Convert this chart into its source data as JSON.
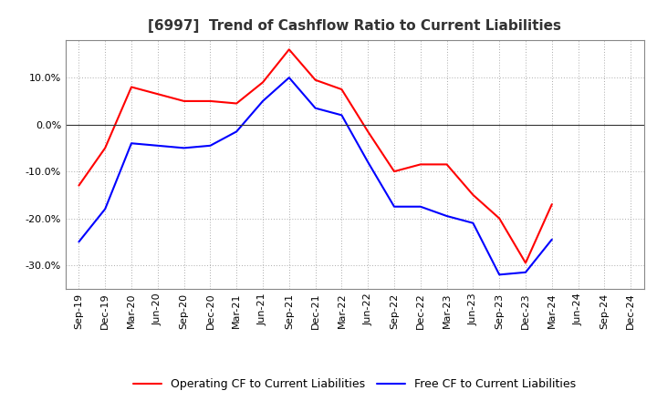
{
  "title": "[6997]  Trend of Cashflow Ratio to Current Liabilities",
  "x_labels": [
    "Sep-19",
    "Dec-19",
    "Mar-20",
    "Jun-20",
    "Sep-20",
    "Dec-20",
    "Mar-21",
    "Jun-21",
    "Sep-21",
    "Dec-21",
    "Mar-22",
    "Jun-22",
    "Sep-22",
    "Dec-22",
    "Mar-23",
    "Jun-23",
    "Sep-23",
    "Dec-23",
    "Mar-24",
    "Jun-24",
    "Sep-24",
    "Dec-24"
  ],
  "operating_cf": [
    -13.0,
    -5.0,
    8.0,
    6.5,
    5.0,
    5.0,
    4.5,
    9.0,
    16.0,
    9.5,
    7.5,
    -1.5,
    -10.0,
    -8.5,
    -8.5,
    -15.0,
    -20.0,
    -29.5,
    -17.0,
    null,
    null,
    null
  ],
  "free_cf": [
    -25.0,
    -18.0,
    -4.0,
    -4.5,
    -5.0,
    -4.5,
    -1.5,
    5.0,
    10.0,
    3.5,
    2.0,
    -8.0,
    -17.5,
    -17.5,
    -19.5,
    -21.0,
    -32.0,
    -31.5,
    -24.5,
    null,
    null,
    null
  ],
  "ylim": [
    -35,
    18
  ],
  "yticks": [
    -30,
    -20,
    -10,
    0,
    10
  ],
  "legend_operating_color": "#ff0000",
  "legend_free_color": "#0000ff",
  "background_color": "#ffffff",
  "plot_bg_color": "#ffffff",
  "grid_color": "#aaaaaa",
  "title_fontsize": 11,
  "title_color": "#333333",
  "legend_fontsize": 9,
  "tick_fontsize": 8
}
